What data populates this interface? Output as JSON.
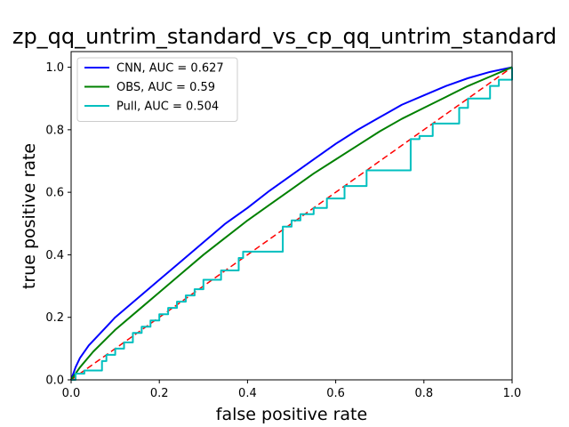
{
  "chart_data": {
    "type": "line",
    "title": "zp_qq_untrim_standard_vs_cp_qq_untrim_standard",
    "xlabel": "false positive rate",
    "ylabel": "true positive rate",
    "xlim": [
      0.0,
      1.0
    ],
    "ylim": [
      0.0,
      1.05
    ],
    "x_ticks": [
      "0.0",
      "0.2",
      "0.4",
      "0.6",
      "0.8",
      "1.0"
    ],
    "y_ticks": [
      "0.0",
      "0.2",
      "0.4",
      "0.6",
      "0.8",
      "1.0"
    ],
    "grid": false,
    "legend_position": "top-left",
    "series": [
      {
        "name": "CNN, AUC = 0.627",
        "color": "#0000ff",
        "style": "solid",
        "x": [
          0.0,
          0.01,
          0.02,
          0.04,
          0.06,
          0.08,
          0.1,
          0.15,
          0.2,
          0.25,
          0.3,
          0.35,
          0.4,
          0.45,
          0.5,
          0.55,
          0.6,
          0.65,
          0.7,
          0.75,
          0.8,
          0.85,
          0.9,
          0.95,
          1.0
        ],
        "y": [
          0.0,
          0.04,
          0.07,
          0.11,
          0.14,
          0.17,
          0.2,
          0.26,
          0.32,
          0.38,
          0.44,
          0.5,
          0.55,
          0.605,
          0.655,
          0.705,
          0.755,
          0.8,
          0.84,
          0.88,
          0.91,
          0.94,
          0.965,
          0.985,
          1.0
        ]
      },
      {
        "name": "OBS, AUC = 0.59",
        "color": "#008000",
        "style": "solid",
        "x": [
          0.0,
          0.02,
          0.05,
          0.1,
          0.15,
          0.2,
          0.25,
          0.3,
          0.35,
          0.4,
          0.45,
          0.5,
          0.55,
          0.6,
          0.65,
          0.7,
          0.75,
          0.8,
          0.85,
          0.9,
          0.95,
          1.0
        ],
        "y": [
          0.0,
          0.04,
          0.09,
          0.16,
          0.22,
          0.28,
          0.34,
          0.4,
          0.455,
          0.51,
          0.56,
          0.61,
          0.66,
          0.705,
          0.75,
          0.795,
          0.835,
          0.87,
          0.905,
          0.94,
          0.97,
          1.0
        ]
      },
      {
        "name": "Pull, AUC = 0.504",
        "color": "#00bfbf",
        "style": "steps",
        "x": [
          0.0,
          0.01,
          0.01,
          0.03,
          0.03,
          0.07,
          0.07,
          0.08,
          0.08,
          0.1,
          0.1,
          0.12,
          0.12,
          0.14,
          0.14,
          0.16,
          0.16,
          0.18,
          0.18,
          0.2,
          0.2,
          0.22,
          0.22,
          0.24,
          0.24,
          0.26,
          0.26,
          0.28,
          0.28,
          0.3,
          0.3,
          0.34,
          0.34,
          0.38,
          0.38,
          0.39,
          0.39,
          0.41,
          0.41,
          0.48,
          0.48,
          0.5,
          0.5,
          0.52,
          0.52,
          0.55,
          0.55,
          0.58,
          0.58,
          0.62,
          0.62,
          0.67,
          0.67,
          0.77,
          0.77,
          0.79,
          0.79,
          0.82,
          0.82,
          0.88,
          0.88,
          0.9,
          0.9,
          0.95,
          0.95,
          0.97,
          0.97,
          1.0,
          1.0
        ],
        "y": [
          0.0,
          0.0,
          0.02,
          0.02,
          0.03,
          0.03,
          0.06,
          0.06,
          0.08,
          0.08,
          0.1,
          0.1,
          0.12,
          0.12,
          0.15,
          0.15,
          0.17,
          0.17,
          0.19,
          0.19,
          0.21,
          0.21,
          0.23,
          0.23,
          0.25,
          0.25,
          0.27,
          0.27,
          0.29,
          0.29,
          0.32,
          0.32,
          0.35,
          0.35,
          0.39,
          0.39,
          0.41,
          0.41,
          0.41,
          0.41,
          0.49,
          0.49,
          0.51,
          0.51,
          0.53,
          0.53,
          0.55,
          0.55,
          0.58,
          0.58,
          0.62,
          0.62,
          0.67,
          0.67,
          0.77,
          0.77,
          0.78,
          0.78,
          0.82,
          0.82,
          0.87,
          0.87,
          0.9,
          0.9,
          0.94,
          0.94,
          0.96,
          0.96,
          1.0
        ]
      },
      {
        "name": "",
        "color": "#ff0000",
        "style": "dashed",
        "x": [
          0.0,
          1.0
        ],
        "y": [
          0.0,
          1.0
        ]
      }
    ]
  }
}
